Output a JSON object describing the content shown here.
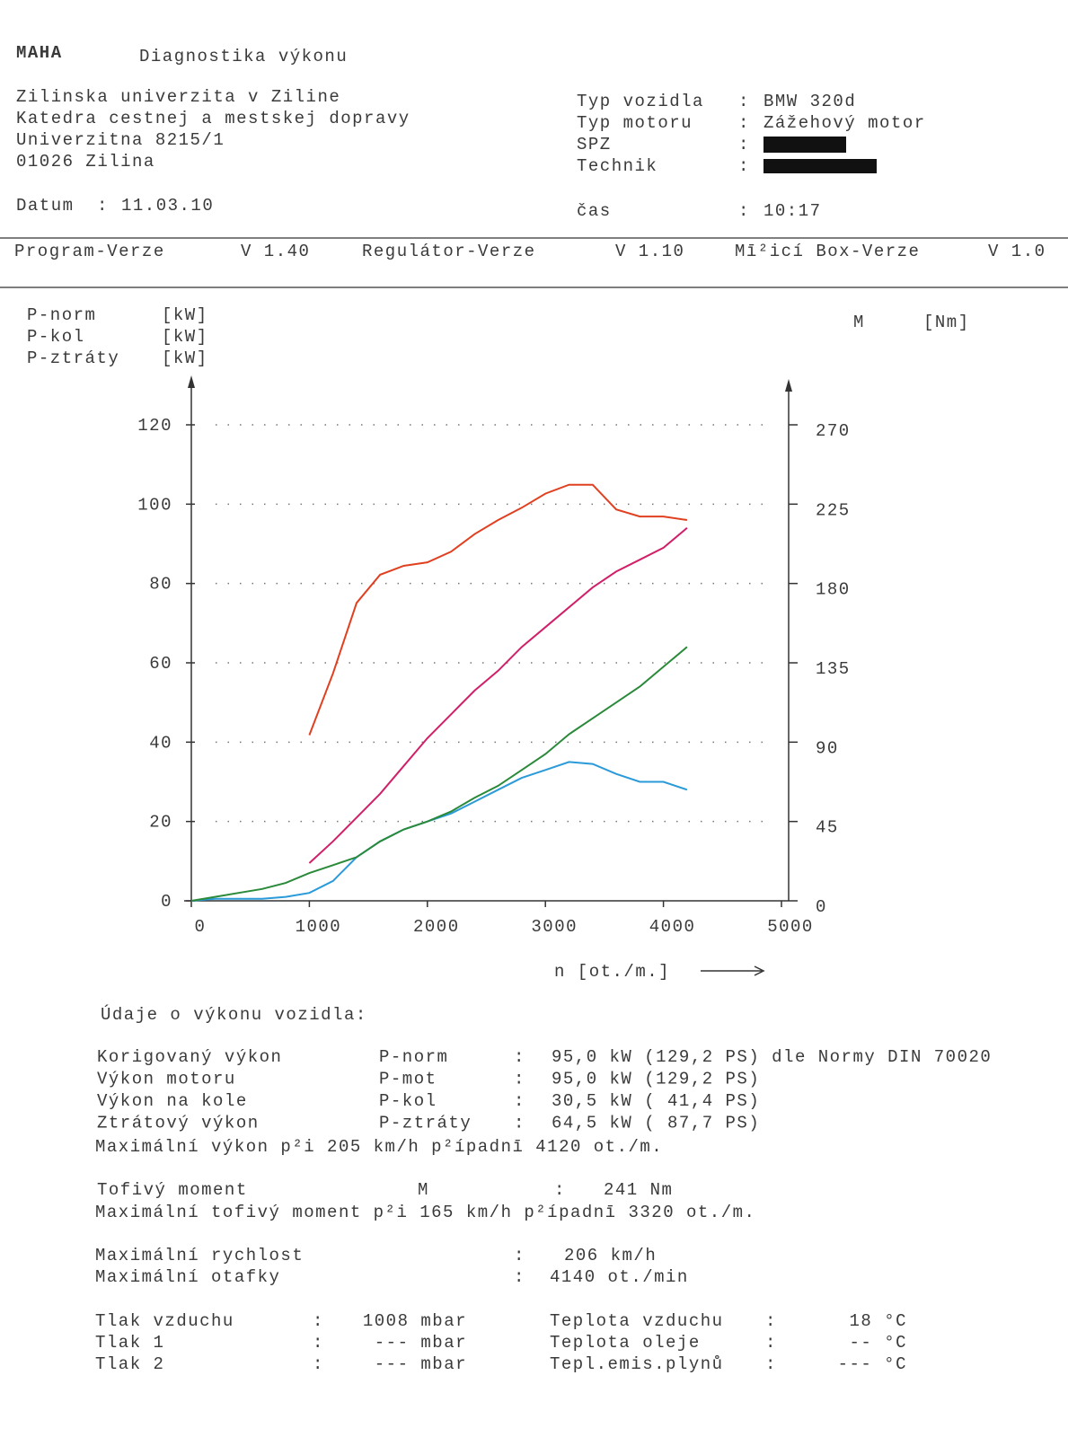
{
  "header": {
    "logo": "MAHA",
    "title": "Diagnostika výkonu",
    "address": [
      "Zilinska univerzita v Ziline",
      "Katedra cestnej a mestskej dopravy",
      "Univerzitna 8215/1",
      "01026 Zilina"
    ],
    "vehicle": [
      {
        "label": "Typ vozidla",
        "value": "BMW 320d"
      },
      {
        "label": "Typ motoru",
        "value": "Zážehový motor"
      },
      {
        "label": "SPZ"
      },
      {
        "label": "Technik"
      }
    ],
    "sep": ":",
    "date": {
      "label": "Datum",
      "value": "11.03.10"
    },
    "time": {
      "label": "čas",
      "value": "10:17"
    },
    "versions": [
      {
        "label": "Program-Verze",
        "value": "V 1.40"
      },
      {
        "label": "Regulátor-Verze",
        "value": "V 1.10"
      },
      {
        "label": "Mī²icí Box-Verze",
        "value": "V 1.0"
      }
    ]
  },
  "chart_data": {
    "type": "line",
    "xlabel": "n [ot./m.]",
    "y2label": "M",
    "y2unit": "[Nm]",
    "x": [
      0,
      200,
      400,
      600,
      800,
      1000,
      1200,
      1400,
      1600,
      1800,
      2000,
      2200,
      2400,
      2600,
      2800,
      3000,
      3200,
      3400,
      3600,
      3800,
      4000,
      4200
    ],
    "xlim": [
      0,
      5000
    ],
    "xticks": [
      0,
      1000,
      2000,
      3000,
      4000,
      5000
    ],
    "ylim": [
      0,
      120
    ],
    "yticks": [
      0,
      20,
      40,
      60,
      80,
      100,
      120
    ],
    "y2lim": [
      0,
      270
    ],
    "y2ticks": [
      0,
      45,
      90,
      135,
      180,
      225,
      270
    ],
    "grid": true,
    "series": [
      {
        "name": "P-norm",
        "unit": "[kW]",
        "color": "#d0206a",
        "values": [
          null,
          null,
          null,
          null,
          null,
          9.5,
          15,
          21,
          27,
          34,
          41,
          47,
          53,
          58,
          64,
          69,
          74,
          79,
          83,
          86,
          89,
          94
        ]
      },
      {
        "name": "P-kol",
        "unit": "[kW]",
        "color": "#2a9ad8",
        "values": [
          0,
          0.5,
          0.5,
          0.5,
          1,
          2,
          5,
          11,
          15,
          18,
          20,
          22,
          25,
          28,
          31,
          33,
          35,
          34.5,
          32,
          30,
          30,
          28
        ]
      },
      {
        "name": "P-ztráty",
        "unit": "[kW]",
        "color": "#2a8a3a",
        "values": [
          0,
          1,
          2,
          3,
          4.5,
          7,
          9,
          11,
          15,
          18,
          20,
          22.5,
          26,
          29,
          33,
          37,
          42,
          46,
          50,
          54,
          59,
          64
        ]
      },
      {
        "name": "M",
        "color": "#e04020",
        "axis": "y2",
        "values": [
          null,
          null,
          null,
          null,
          null,
          94,
          129,
          169,
          185,
          190,
          192,
          198,
          208,
          216,
          223,
          231,
          236,
          236,
          222,
          218,
          218,
          216
        ]
      }
    ]
  },
  "results": {
    "heading": "Údaje o výkonu vozidla:",
    "rows": [
      {
        "label": "Korigovaný výkon",
        "symbol": "P-norm",
        "value": "95,0 kW (129,2 PS) dle Normy DIN 70020"
      },
      {
        "label": "Výkon motoru",
        "symbol": "P-mot",
        "value": "95,0 kW (129,2 PS)"
      },
      {
        "label": "Výkon na kole",
        "symbol": "P-kol",
        "value": "30,5 kW ( 41,4 PS)"
      },
      {
        "label": "Ztrátový výkon",
        "symbol": "P-ztráty",
        "value": "64,5 kW ( 87,7 PS)"
      }
    ],
    "max_power": "Maximální výkon p²i 205 km/h p²ípadnī 4120 ot./m.",
    "torque": {
      "label": "Tofivý moment",
      "symbol": "M",
      "value": "241 Nm"
    },
    "max_torque": "Maximální tofivý moment p²i 165 km/h p²ípadnī 3320 ot./m.",
    "speed": [
      {
        "label": "Maximální rychlost",
        "value": "206 km/h"
      },
      {
        "label": "Maximální otafky",
        "value": "4140 ot./min"
      }
    ],
    "pressure": [
      {
        "label": "Tlak vzduchu",
        "value": "1008 mbar"
      },
      {
        "label": "Tlak 1",
        "value": "--- mbar"
      },
      {
        "label": "Tlak 2",
        "value": "--- mbar"
      }
    ],
    "temperature": [
      {
        "label": "Teplota vzduchu",
        "value": "18 °C"
      },
      {
        "label": "Teplota oleje",
        "value": "-- °C"
      },
      {
        "label": "Tepl.emis.plynů",
        "value": "--- °C"
      }
    ]
  }
}
